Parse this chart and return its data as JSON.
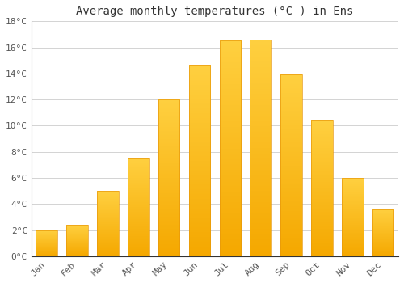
{
  "title": "Average monthly temperatures (°C ) in Ens",
  "months": [
    "Jan",
    "Feb",
    "Mar",
    "Apr",
    "May",
    "Jun",
    "Jul",
    "Aug",
    "Sep",
    "Oct",
    "Nov",
    "Dec"
  ],
  "values": [
    2.0,
    2.4,
    5.0,
    7.5,
    12.0,
    14.6,
    16.5,
    16.6,
    13.9,
    10.4,
    6.0,
    3.6
  ],
  "bar_color_bottom": "#F5A800",
  "bar_color_top": "#FFD040",
  "ylim": [
    0,
    18
  ],
  "yticks": [
    0,
    2,
    4,
    6,
    8,
    10,
    12,
    14,
    16,
    18
  ],
  "ytick_labels": [
    "0°C",
    "2°C",
    "4°C",
    "6°C",
    "8°C",
    "10°C",
    "12°C",
    "14°C",
    "16°C",
    "18°C"
  ],
  "background_color": "#ffffff",
  "grid_color": "#cccccc",
  "title_fontsize": 10,
  "tick_fontsize": 8,
  "font_family": "monospace"
}
